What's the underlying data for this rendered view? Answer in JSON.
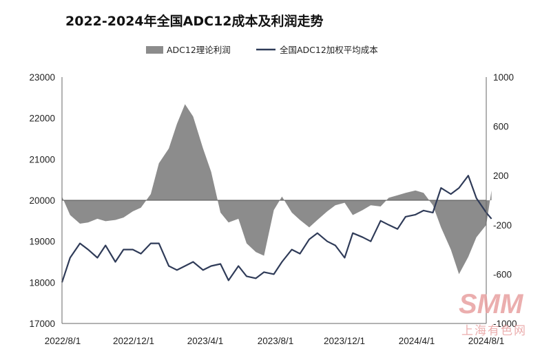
{
  "chart_data": {
    "type": "line",
    "title": "2022-2024年全国ADC12成本及利润走势",
    "legend_position": "top",
    "grid": false,
    "x_tick_labels": [
      "2022/8/1",
      "2022/12/1",
      "2023/4/1",
      "2023/8/1",
      "2023/12/1",
      "2024/4/1",
      "2024/8/1"
    ],
    "y_left": {
      "ticks": [
        23000,
        22000,
        21000,
        20000,
        19000,
        18000,
        17000
      ],
      "range": [
        17000,
        23000
      ]
    },
    "y_right": {
      "ticks": [
        1000,
        600,
        200,
        -200,
        -600,
        -1000
      ],
      "range": [
        -1000,
        1000
      ]
    },
    "watermark": {
      "logo": "SMM",
      "text": "上海有色网"
    },
    "series": [
      {
        "name": "ADC12理论利润",
        "type": "area",
        "axis": "right",
        "color": "#8c8c8c",
        "x": [
          "2022-08-01",
          "2022-08-15",
          "2022-09-01",
          "2022-09-15",
          "2022-10-01",
          "2022-10-15",
          "2022-11-01",
          "2022-11-15",
          "2022-12-01",
          "2022-12-15",
          "2023-01-01",
          "2023-01-15",
          "2023-02-01",
          "2023-02-15",
          "2023-03-01",
          "2023-03-15",
          "2023-04-01",
          "2023-04-15",
          "2023-05-01",
          "2023-05-15",
          "2023-06-01",
          "2023-06-15",
          "2023-07-01",
          "2023-07-15",
          "2023-08-01",
          "2023-08-15",
          "2023-09-01",
          "2023-09-15",
          "2023-10-01",
          "2023-10-15",
          "2023-11-01",
          "2023-11-15",
          "2023-12-01",
          "2023-12-15",
          "2024-01-01",
          "2024-01-15",
          "2024-02-01",
          "2024-02-15",
          "2024-03-01",
          "2024-03-15",
          "2024-04-01",
          "2024-04-15",
          "2024-05-01",
          "2024-05-15",
          "2024-06-01",
          "2024-06-15",
          "2024-07-01",
          "2024-07-15",
          "2024-08-01",
          "2024-08-10"
        ],
        "values": [
          30,
          -120,
          -190,
          -180,
          -150,
          -170,
          -160,
          -140,
          -90,
          -60,
          50,
          300,
          420,
          620,
          780,
          680,
          420,
          230,
          -100,
          -180,
          -150,
          -350,
          -420,
          -450,
          -80,
          30,
          -100,
          -160,
          -220,
          -160,
          -90,
          -40,
          -20,
          -120,
          -80,
          -40,
          -50,
          20,
          40,
          60,
          80,
          60,
          -40,
          -220,
          -400,
          -600,
          -460,
          -300,
          -200,
          80
        ]
      },
      {
        "name": "全国ADC12加权平均成本",
        "type": "line",
        "axis": "left",
        "color": "#2f3b58",
        "x": [
          "2022-08-01",
          "2022-08-15",
          "2022-09-01",
          "2022-09-15",
          "2022-10-01",
          "2022-10-15",
          "2022-11-01",
          "2022-11-15",
          "2022-12-01",
          "2022-12-15",
          "2023-01-01",
          "2023-01-15",
          "2023-02-01",
          "2023-02-15",
          "2023-03-01",
          "2023-03-15",
          "2023-04-01",
          "2023-04-15",
          "2023-05-01",
          "2023-05-15",
          "2023-06-01",
          "2023-06-15",
          "2023-07-01",
          "2023-07-15",
          "2023-08-01",
          "2023-08-15",
          "2023-09-01",
          "2023-09-15",
          "2023-10-01",
          "2023-10-15",
          "2023-11-01",
          "2023-11-15",
          "2023-12-01",
          "2023-12-15",
          "2024-01-01",
          "2024-01-15",
          "2024-02-01",
          "2024-02-15",
          "2024-03-01",
          "2024-03-15",
          "2024-04-01",
          "2024-04-15",
          "2024-05-01",
          "2024-05-15",
          "2024-06-01",
          "2024-06-15",
          "2024-07-01",
          "2024-07-15",
          "2024-08-01",
          "2024-08-10"
        ],
        "values": [
          18000,
          18600,
          18950,
          18800,
          18600,
          18900,
          18500,
          18800,
          18800,
          18700,
          18950,
          18950,
          18400,
          18300,
          18400,
          18500,
          18300,
          18400,
          18450,
          18050,
          18400,
          18150,
          18100,
          18250,
          18200,
          18500,
          18800,
          18700,
          19050,
          19200,
          19000,
          18900,
          18600,
          19200,
          19100,
          19000,
          19500,
          19400,
          19300,
          19600,
          19650,
          19750,
          19700,
          20300,
          20150,
          20300,
          20600,
          20050,
          19700,
          19550
        ]
      }
    ]
  }
}
